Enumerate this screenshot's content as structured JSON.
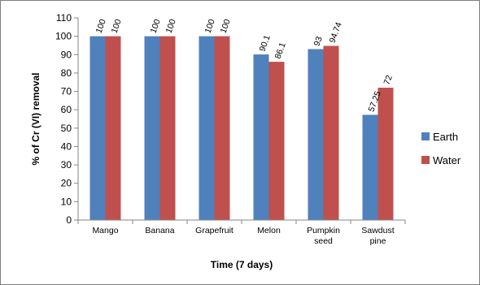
{
  "chart_data": {
    "type": "bar",
    "title": "",
    "xlabel": "Time (7 days)",
    "ylabel": "% of Cr (VI) removal",
    "ylim": [
      0,
      110
    ],
    "yticks": [
      0,
      10,
      20,
      30,
      40,
      50,
      60,
      70,
      80,
      90,
      100,
      110
    ],
    "grid": false,
    "legend_position": "right",
    "categories": [
      [
        "Mango"
      ],
      [
        "Banana"
      ],
      [
        "Grapefruit"
      ],
      [
        "Melon"
      ],
      [
        "Pumpkin",
        "seed"
      ],
      [
        "Sawdust",
        "pine"
      ]
    ],
    "series": [
      {
        "name": "Earth",
        "color": "#4f81bd",
        "values": [
          100,
          100,
          100,
          90.1,
          93,
          57.25
        ],
        "labels": [
          "100",
          "100",
          "100",
          "90.1",
          "93",
          "57.25"
        ]
      },
      {
        "name": "Water",
        "color": "#c0504d",
        "values": [
          100,
          100,
          100,
          86.1,
          94.74,
          72
        ],
        "labels": [
          "100",
          "100",
          "100",
          "86.1",
          "94.74",
          "72"
        ]
      }
    ]
  }
}
